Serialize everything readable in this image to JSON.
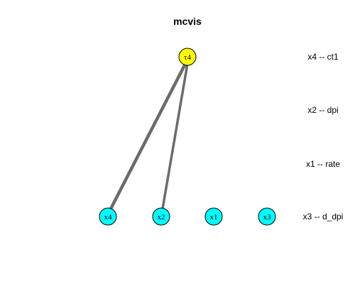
{
  "title": "mcvis",
  "colors": {
    "tau_node_fill": "#ffff00",
    "x_node_fill": "#00ffff",
    "node_stroke": "#000000",
    "edge": "#6b6b6b",
    "background": "#ffffff"
  },
  "nodes": {
    "tau": {
      "label": "τ4"
    },
    "x": [
      {
        "label": "x4"
      },
      {
        "label": "x2"
      },
      {
        "label": "x1"
      },
      {
        "label": "x3"
      }
    ]
  },
  "edges": [
    {
      "from": "τ4",
      "to": "x4",
      "weight": "heavy"
    },
    {
      "from": "τ4",
      "to": "x2",
      "weight": "medium"
    }
  ],
  "legend": [
    {
      "text": "x4 -- ct1"
    },
    {
      "text": "x2 -- dpi"
    },
    {
      "text": "x1 -- rate"
    },
    {
      "text": "x3 -- d_dpi"
    }
  ]
}
